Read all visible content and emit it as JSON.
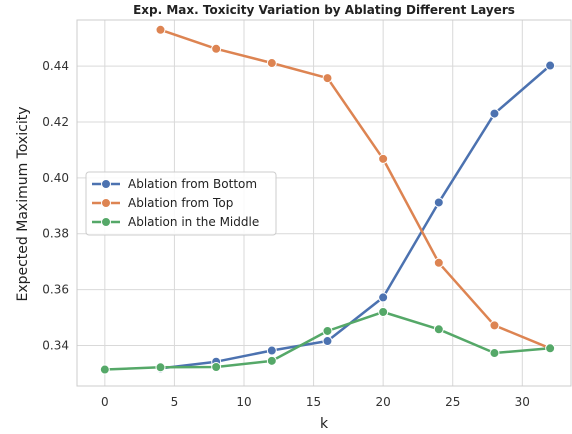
{
  "chart_data": {
    "type": "line",
    "title": "Exp. Max. Toxicity Variation by Ablating Different Layers",
    "xlabel": "k",
    "ylabel": "Expected Maximum Toxicity",
    "xlim": [
      -2,
      33.5
    ],
    "ylim": [
      0.3255,
      0.4565
    ],
    "xticks": [
      0,
      5,
      10,
      15,
      20,
      25,
      30
    ],
    "yticks": [
      0.34,
      0.36,
      0.38,
      0.4,
      0.42,
      0.44
    ],
    "ytick_labels": [
      "0.34",
      "0.36",
      "0.38",
      "0.40",
      "0.42",
      "0.44"
    ],
    "grid": true,
    "legend_position": "center-left",
    "series": [
      {
        "name": "Ablation from Bottom",
        "color": "#4c72b0",
        "x": [
          4,
          8,
          12,
          16,
          20,
          24,
          28,
          32
        ],
        "y": [
          0.3318,
          0.3342,
          0.3382,
          0.3416,
          0.3572,
          0.3912,
          0.423,
          0.4402
        ]
      },
      {
        "name": "Ablation from Top",
        "color": "#dd8452",
        "x": [
          4,
          8,
          12,
          16,
          20,
          24,
          28,
          32
        ],
        "y": [
          0.453,
          0.4462,
          0.4411,
          0.4357,
          0.4068,
          0.3696,
          0.3472,
          0.339
        ]
      },
      {
        "name": "Ablation in the Middle",
        "color": "#55a868",
        "x": [
          0,
          4,
          8,
          12,
          16,
          20,
          24,
          28,
          32
        ],
        "y": [
          0.3314,
          0.3322,
          0.3323,
          0.3345,
          0.3452,
          0.352,
          0.3458,
          0.3373,
          0.339
        ]
      }
    ]
  }
}
